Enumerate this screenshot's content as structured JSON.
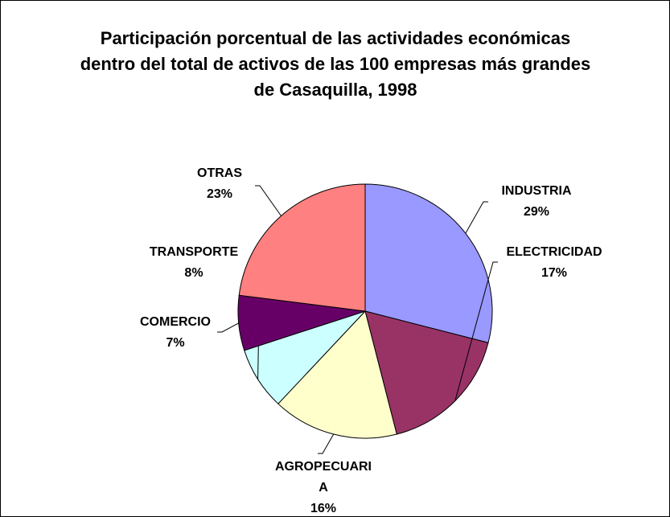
{
  "chart_data": {
    "type": "pie",
    "title": "Participación porcentual de las actividades económicas dentro del total de activos de las 100 empresas más grandes de Casaquilla, 1998",
    "categories": [
      "INDUSTRIA",
      "ELECTRICIDAD",
      "AGROPECUARIA",
      "TRANSPORTE",
      "COMERCIO",
      "OTRAS"
    ],
    "values": [
      29,
      17,
      16,
      8,
      7,
      23
    ],
    "value_labels": [
      "29%",
      "17%",
      "16%",
      "8%",
      "7%",
      "23%"
    ],
    "colors": [
      "#9999ff",
      "#993366",
      "#ffffcc",
      "#ccffff",
      "#660066",
      "#ff8080"
    ]
  }
}
